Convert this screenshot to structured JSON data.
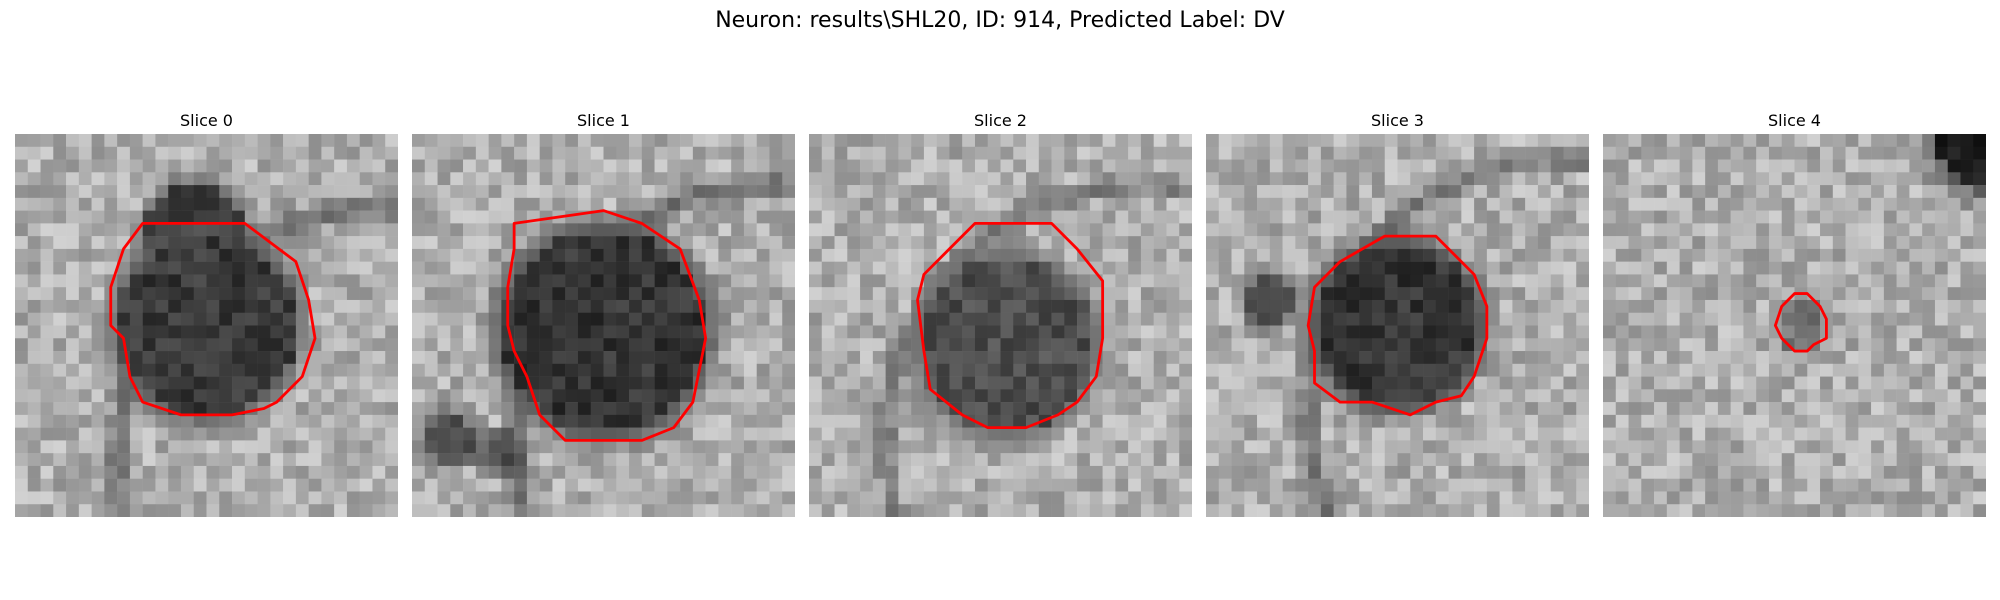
{
  "figure": {
    "title": "Neuron: results\\SHL20, ID: 914, Predicted Label: DV"
  },
  "colors": {
    "contour": "#ff0000",
    "background": "#ffffff"
  },
  "panels": [
    {
      "title": "Slice 0"
    },
    {
      "title": "Slice 1"
    },
    {
      "title": "Slice 2"
    },
    {
      "title": "Slice 3"
    },
    {
      "title": "Slice 4"
    }
  ]
}
